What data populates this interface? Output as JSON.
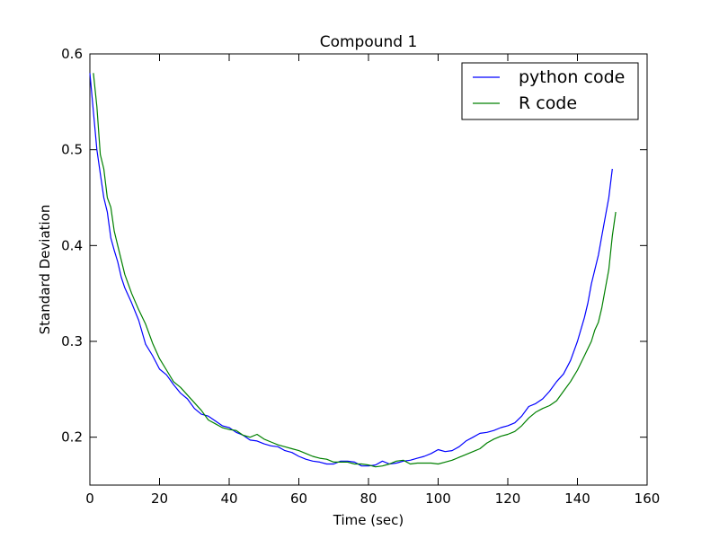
{
  "chart_data": {
    "type": "line",
    "title": "Compound 1",
    "xlabel": "Time (sec)",
    "ylabel": "Standard Deviation",
    "xlim": [
      0,
      160
    ],
    "ylim": [
      0.15,
      0.6
    ],
    "xticks": [
      0,
      20,
      40,
      60,
      80,
      100,
      120,
      140,
      160
    ],
    "xtick_labels": [
      "0",
      "20",
      "40",
      "60",
      "80",
      "100",
      "120",
      "140",
      "160"
    ],
    "yticks": [
      0.2,
      0.3,
      0.4,
      0.5,
      0.6
    ],
    "ytick_labels": [
      "0.2",
      "0.3",
      "0.4",
      "0.5",
      "0.6"
    ],
    "grid": false,
    "legend_position": "top-right",
    "series": [
      {
        "name": "python code",
        "color": "#0000ff",
        "x": [
          0,
          1,
          2,
          3,
          4,
          5,
          6,
          7,
          8,
          9,
          10,
          12,
          14,
          16,
          18,
          20,
          22,
          24,
          26,
          28,
          30,
          32,
          34,
          36,
          38,
          40,
          42,
          44,
          46,
          48,
          50,
          52,
          54,
          56,
          58,
          60,
          62,
          64,
          66,
          68,
          70,
          72,
          74,
          76,
          78,
          80,
          82,
          84,
          86,
          88,
          90,
          92,
          94,
          96,
          98,
          100,
          102,
          104,
          106,
          108,
          110,
          112,
          114,
          116,
          118,
          120,
          122,
          124,
          126,
          128,
          130,
          132,
          134,
          136,
          138,
          140,
          142,
          143,
          144,
          145,
          146,
          147,
          148,
          149,
          150
        ],
        "y": [
          0.58,
          0.54,
          0.5,
          0.475,
          0.45,
          0.435,
          0.408,
          0.395,
          0.383,
          0.367,
          0.356,
          0.34,
          0.322,
          0.297,
          0.285,
          0.271,
          0.265,
          0.255,
          0.246,
          0.24,
          0.23,
          0.224,
          0.222,
          0.217,
          0.212,
          0.21,
          0.205,
          0.202,
          0.197,
          0.196,
          0.193,
          0.191,
          0.19,
          0.186,
          0.184,
          0.18,
          0.177,
          0.175,
          0.174,
          0.172,
          0.172,
          0.175,
          0.175,
          0.174,
          0.17,
          0.17,
          0.171,
          0.175,
          0.172,
          0.173,
          0.175,
          0.176,
          0.178,
          0.18,
          0.183,
          0.187,
          0.185,
          0.186,
          0.19,
          0.196,
          0.2,
          0.204,
          0.205,
          0.207,
          0.21,
          0.212,
          0.215,
          0.222,
          0.232,
          0.235,
          0.24,
          0.248,
          0.258,
          0.266,
          0.28,
          0.3,
          0.325,
          0.34,
          0.36,
          0.375,
          0.39,
          0.41,
          0.43,
          0.45,
          0.48
        ]
      },
      {
        "name": "R code",
        "color": "#008000",
        "x": [
          1,
          2,
          3,
          4,
          5,
          6,
          7,
          8,
          9,
          10,
          12,
          14,
          16,
          18,
          20,
          22,
          24,
          26,
          28,
          30,
          32,
          34,
          36,
          38,
          40,
          42,
          44,
          46,
          48,
          50,
          52,
          54,
          56,
          58,
          60,
          62,
          64,
          66,
          68,
          70,
          72,
          74,
          76,
          78,
          80,
          82,
          84,
          86,
          88,
          90,
          92,
          94,
          96,
          98,
          100,
          102,
          104,
          106,
          108,
          110,
          112,
          114,
          116,
          118,
          120,
          122,
          124,
          126,
          128,
          130,
          132,
          134,
          136,
          138,
          140,
          142,
          144,
          145,
          146,
          147,
          148,
          149,
          150,
          151
        ],
        "y": [
          0.58,
          0.545,
          0.495,
          0.48,
          0.45,
          0.44,
          0.415,
          0.4,
          0.385,
          0.37,
          0.35,
          0.333,
          0.318,
          0.298,
          0.282,
          0.27,
          0.258,
          0.252,
          0.244,
          0.236,
          0.228,
          0.218,
          0.214,
          0.21,
          0.208,
          0.207,
          0.202,
          0.2,
          0.203,
          0.198,
          0.195,
          0.192,
          0.19,
          0.188,
          0.186,
          0.183,
          0.18,
          0.178,
          0.177,
          0.174,
          0.174,
          0.174,
          0.172,
          0.172,
          0.171,
          0.169,
          0.17,
          0.172,
          0.175,
          0.176,
          0.172,
          0.173,
          0.173,
          0.173,
          0.172,
          0.174,
          0.176,
          0.179,
          0.182,
          0.185,
          0.188,
          0.194,
          0.198,
          0.201,
          0.203,
          0.206,
          0.212,
          0.22,
          0.226,
          0.23,
          0.233,
          0.238,
          0.248,
          0.258,
          0.27,
          0.285,
          0.3,
          0.312,
          0.32,
          0.335,
          0.355,
          0.375,
          0.41,
          0.435
        ]
      }
    ]
  }
}
